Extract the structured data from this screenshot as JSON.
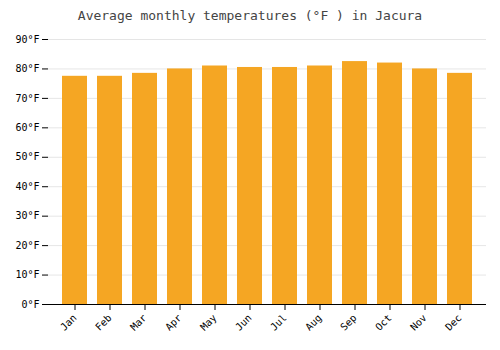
{
  "chart_data": {
    "type": "bar",
    "title": "Average monthly temperatures (°F ) in Jacura",
    "categories": [
      "Jan",
      "Feb",
      "Mar",
      "Apr",
      "May",
      "Jun",
      "Jul",
      "Aug",
      "Sep",
      "Oct",
      "Nov",
      "Dec"
    ],
    "values": [
      77.5,
      77.5,
      78.5,
      80.0,
      81.0,
      80.5,
      80.5,
      81.0,
      82.5,
      82.0,
      80.0,
      78.5
    ],
    "color": "#F5A623",
    "ylim": [
      0,
      90
    ],
    "yticks": [
      {
        "value": 0,
        "label": "0°F"
      },
      {
        "value": 10,
        "label": "10°F"
      },
      {
        "value": 20,
        "label": "20°F"
      },
      {
        "value": 30,
        "label": "30°F"
      },
      {
        "value": 40,
        "label": "40°F"
      },
      {
        "value": 50,
        "label": "50°F"
      },
      {
        "value": 60,
        "label": "60°F"
      },
      {
        "value": 70,
        "label": "70°F"
      },
      {
        "value": 80,
        "label": "80°F"
      },
      {
        "value": 90,
        "label": "90°F"
      }
    ],
    "grid": true
  }
}
